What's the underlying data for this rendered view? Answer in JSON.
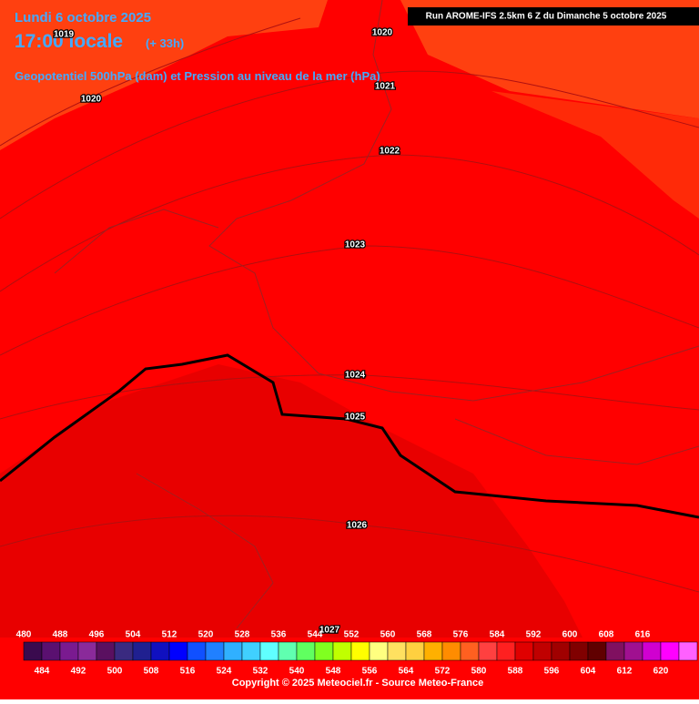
{
  "header": {
    "date": "Lundi 6 octobre 2025",
    "time": "17:00 locale",
    "offset": "(+ 33h)",
    "subtitle": "Geopotentiel 500hPa (dam) et Pression au niveau de la mer (hPa)",
    "run": "Run AROME-IFS 2.5km 6 Z du Dimanche 5 octobre 2025"
  },
  "isobars": [
    1019,
    1020,
    1020,
    1021,
    1022,
    1023,
    1024,
    1025,
    1026,
    1027
  ],
  "legend": {
    "top_labels": [
      480,
      488,
      496,
      504,
      512,
      520,
      528,
      536,
      544,
      552,
      560,
      568,
      576,
      584,
      592,
      600,
      608,
      616
    ],
    "bottom_labels": [
      484,
      492,
      500,
      508,
      516,
      524,
      532,
      540,
      548,
      556,
      564,
      572,
      580,
      588,
      596,
      604,
      612,
      620
    ],
    "colors": [
      "#3a0a4e",
      "#5a1070",
      "#7a1a90",
      "#8a2a9a",
      "#5a1060",
      "#3a2a80",
      "#202090",
      "#1010c0",
      "#0000ff",
      "#1050ff",
      "#2080ff",
      "#30b0ff",
      "#40d0ff",
      "#60ffff",
      "#60ffb0",
      "#60ff60",
      "#80ff20",
      "#c0ff00",
      "#ffff00",
      "#ffff80",
      "#ffe060",
      "#ffd040",
      "#ffb000",
      "#ff8c00",
      "#ff6020",
      "#ff4040",
      "#ff2020",
      "#e00000",
      "#c00000",
      "#a00000",
      "#800000",
      "#600000",
      "#801060",
      "#a01090",
      "#d000d0",
      "#ff00ff",
      "#ff60ff"
    ]
  },
  "copyright": "Copyright © 2025 Meteociel.fr - Source Meteo-France"
}
